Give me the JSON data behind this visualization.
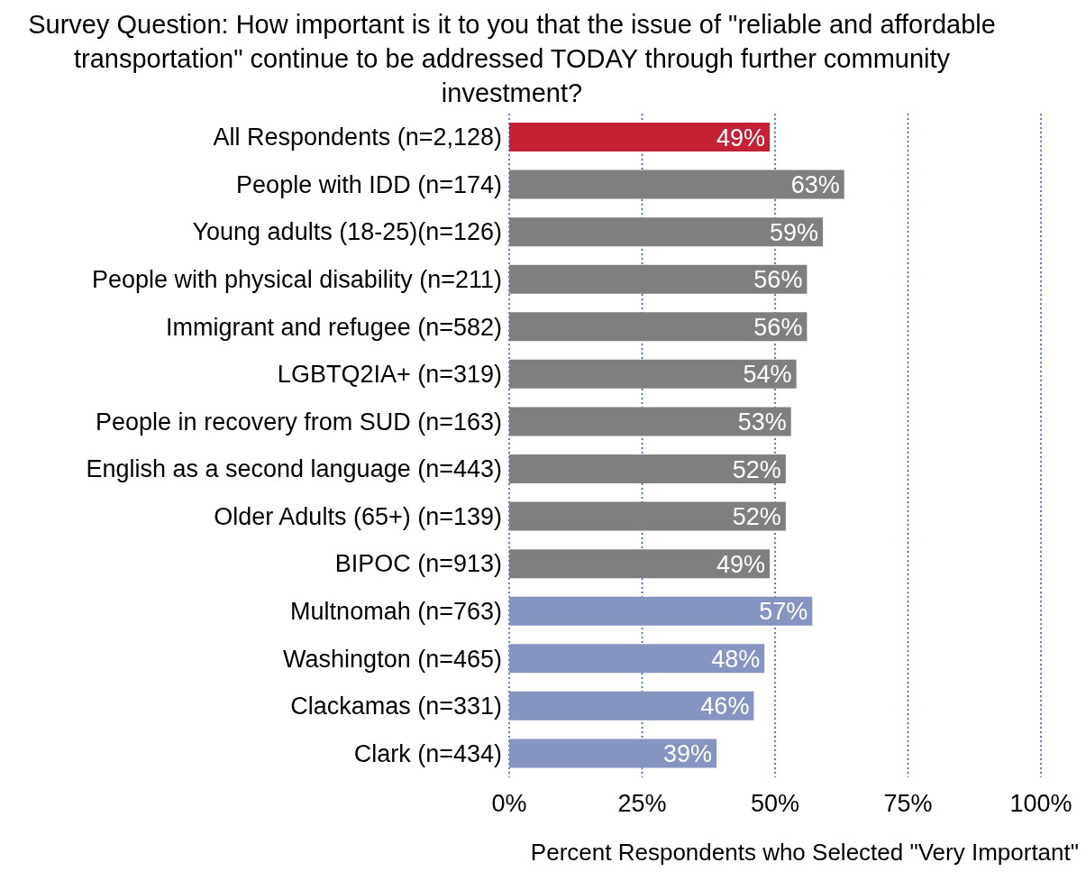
{
  "chart_data": {
    "type": "bar",
    "orientation": "horizontal",
    "title": "Survey Question: How important is it to you that the issue of \"reliable and affordable transportation\" continue to be addressed TODAY through further community investment?",
    "xlabel": "Percent Respondents who Selected \"Very Important\"",
    "categories": [
      "All Respondents (n=2,128)",
      "People with IDD (n=174)",
      "Young adults (18-25)(n=126)",
      "People with physical disability (n=211)",
      "Immigrant and refugee (n=582)",
      "LGBTQ2IA+ (n=319)",
      "People in recovery from SUD (n=163)",
      "English as a second language (n=443)",
      "Older Adults (65+) (n=139)",
      "BIPOC (n=913)",
      "Multnomah (n=763)",
      "Washington (n=465)",
      "Clackamas (n=331)",
      "Clark (n=434)"
    ],
    "values": [
      49,
      63,
      59,
      56,
      56,
      54,
      53,
      52,
      52,
      49,
      57,
      48,
      46,
      39
    ],
    "value_labels": [
      "49%",
      "63%",
      "59%",
      "56%",
      "56%",
      "54%",
      "53%",
      "52%",
      "52%",
      "49%",
      "57%",
      "48%",
      "46%",
      "39%"
    ],
    "colors": [
      "#c62035",
      "#7f7f7f",
      "#7f7f7f",
      "#7f7f7f",
      "#7f7f7f",
      "#7f7f7f",
      "#7f7f7f",
      "#7f7f7f",
      "#7f7f7f",
      "#7f7f7f",
      "#8594c0",
      "#8594c0",
      "#8594c0",
      "#8594c0"
    ],
    "xlim": [
      0,
      100
    ],
    "xticks": [
      {
        "value": 0,
        "label": "0%"
      },
      {
        "value": 25,
        "label": "25%"
      },
      {
        "value": 50,
        "label": "50%"
      },
      {
        "value": 75,
        "label": "75%"
      },
      {
        "value": 100,
        "label": "100%"
      }
    ],
    "grid": "x"
  }
}
